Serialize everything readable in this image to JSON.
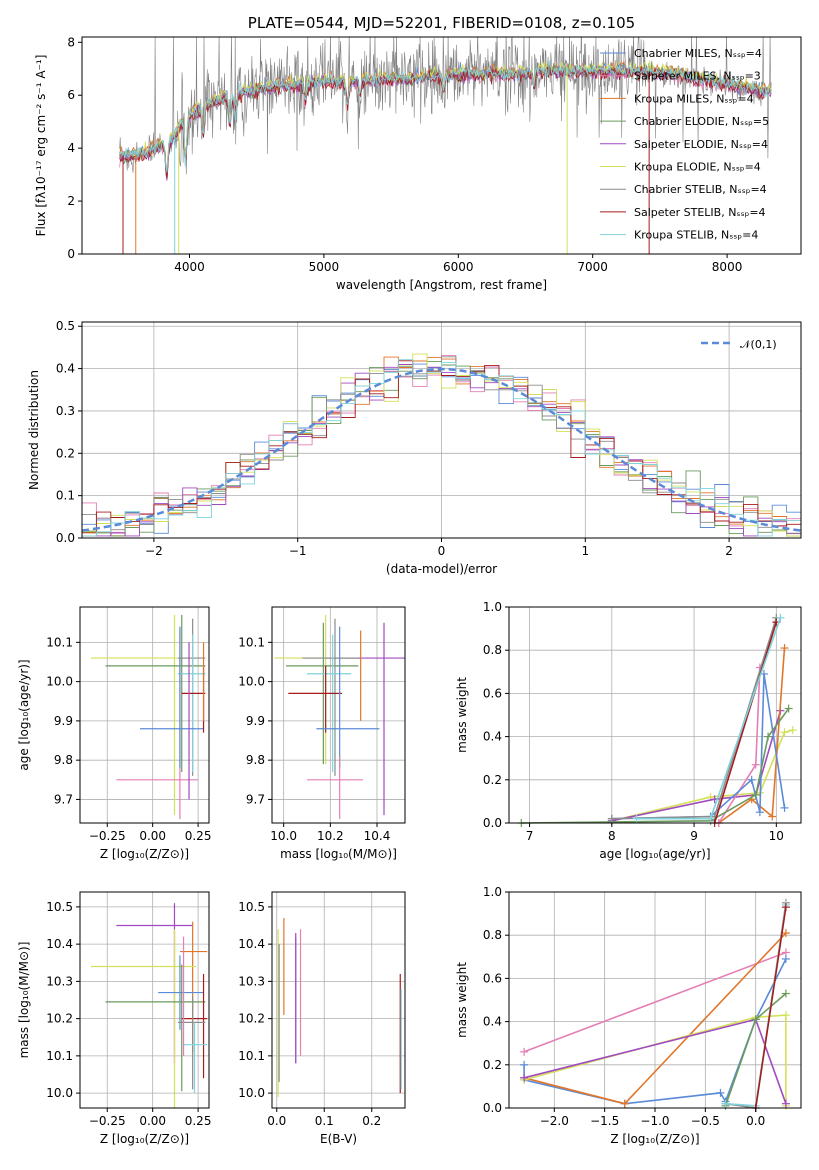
{
  "title": "PLATE=0544, MJD=52201, FIBERID=0108, z=0.105",
  "colors": {
    "chabrier_miles": "#5b8bd8",
    "salpeter_miles": "#e47fb4",
    "kroupa_miles": "#e0762a",
    "chabrier_elodie": "#6a9a5c",
    "salpeter_elodie": "#a14bc0",
    "kroupa_elodie": "#d4e05a",
    "chabrier_stelib": "#8c8c8c",
    "salpeter_stelib": "#a61c1c",
    "kroupa_stelib": "#7fd3dc",
    "data_grey": "#7f7f7f"
  },
  "chart_data": [
    {
      "id": "spectrum",
      "type": "line",
      "title": "PLATE=0544, MJD=52201, FIBERID=0108, z=0.105",
      "xlabel": "wavelength [Angstrom, rest frame]",
      "ylabel": "Flux [fλ10⁻¹⁷ erg cm⁻² s⁻¹ A⁻¹]",
      "xlim": [
        3200,
        8550
      ],
      "ylim": [
        0,
        8.2
      ],
      "xticks": [
        "4000",
        "5000",
        "6000",
        "7000",
        "8000"
      ],
      "yticks": [
        "0",
        "2",
        "4",
        "6",
        "8"
      ],
      "legend_position": "right",
      "legend": [
        "Chabrier MILES, N_SSP=4",
        "Salpeter MILES, N_SSP=3",
        "Kroupa MILES, N_SSP=4",
        "Chabrier ELODIE, N_SSP=5",
        "Salpeter ELODIE, N_SSP=4",
        "Kroupa ELODIE, N_SSP=4",
        "Chabrier STELIB, N_SSP=4",
        "Salpeter STELIB, N_SSP=4",
        "Kroupa STELIB, N_SSP=4"
      ],
      "continuum": {
        "x": [
          3480,
          3550,
          3650,
          3750,
          3850,
          3950,
          4050,
          4200,
          4400,
          4600,
          4800,
          5000,
          5200,
          5400,
          5600,
          5800,
          6000,
          6200,
          6400,
          6600,
          6800,
          7000,
          7200,
          7400,
          7600,
          7800,
          8000,
          8200,
          8330
        ],
        "y": [
          3.7,
          3.7,
          3.8,
          4.0,
          4.2,
          5.0,
          5.4,
          5.8,
          6.1,
          6.3,
          6.4,
          6.5,
          6.5,
          6.6,
          6.6,
          6.7,
          6.8,
          6.8,
          6.8,
          6.9,
          6.9,
          6.9,
          6.9,
          6.9,
          6.8,
          6.6,
          6.4,
          6.2,
          6.1
        ]
      }
    },
    {
      "id": "residuals",
      "type": "histogram",
      "xlabel": "(data-model)/error",
      "ylabel": "Normed distribution",
      "xlim": [
        -2.5,
        2.5
      ],
      "ylim": [
        0,
        0.51
      ],
      "xticks": [
        "−2",
        "−1",
        "0",
        "1",
        "2"
      ],
      "yticks": [
        "0.0",
        "0.1",
        "0.2",
        "0.3",
        "0.4",
        "0.5"
      ],
      "gaussian_legend": "𝒩(0,1)",
      "legend_position": "top-right"
    },
    {
      "id": "age_vs_Z",
      "type": "errorbar",
      "xlabel": "Z [log₁₀(Z/Z⊙)]",
      "ylabel": "age  [log₁₀(age/yr)]",
      "xlim": [
        -0.4,
        0.31
      ],
      "ylim": [
        9.64,
        10.19
      ],
      "xticks": [
        "−0.25",
        "0.00",
        "0.25"
      ],
      "yticks": [
        "9.7",
        "9.8",
        "9.9",
        "10.0",
        "10.1"
      ]
    },
    {
      "id": "age_vs_mass",
      "type": "errorbar",
      "xlabel": "mass [log₁₀(M/M⊙)]",
      "ylabel": "",
      "xlim": [
        9.95,
        10.52
      ],
      "ylim": [
        9.64,
        10.19
      ],
      "xticks": [
        "10.0",
        "10.2",
        "10.4"
      ],
      "yticks": [
        "9.7",
        "9.8",
        "9.9",
        "10.0",
        "10.1"
      ]
    },
    {
      "id": "weight_vs_age",
      "type": "line",
      "xlabel": "age  [log₁₀(age/yr)]",
      "ylabel": "mass weight",
      "xlim": [
        6.75,
        10.3
      ],
      "ylim": [
        0,
        1.0
      ],
      "xticks": [
        "7",
        "8",
        "9",
        "10"
      ],
      "yticks": [
        "0.0",
        "0.2",
        "0.4",
        "0.6",
        "0.8",
        "1.0"
      ]
    },
    {
      "id": "mass_vs_Z",
      "type": "errorbar",
      "xlabel": "Z [log₁₀(Z/Z⊙)]",
      "ylabel": "mass [log₁₀(M/M⊙)]",
      "xlim": [
        -0.4,
        0.31
      ],
      "ylim": [
        9.96,
        10.54
      ],
      "xticks": [
        "−0.25",
        "0.00",
        "0.25"
      ],
      "yticks": [
        "10.0",
        "10.1",
        "10.2",
        "10.3",
        "10.4",
        "10.5"
      ]
    },
    {
      "id": "mass_vs_ebv",
      "type": "errorbar",
      "xlabel": "E(B-V)",
      "ylabel": "",
      "xlim": [
        -0.01,
        0.27
      ],
      "ylim": [
        9.96,
        10.54
      ],
      "xticks": [
        "0.0",
        "0.1",
        "0.2"
      ],
      "yticks": [
        "10.0",
        "10.1",
        "10.2",
        "10.3",
        "10.4",
        "10.5"
      ]
    },
    {
      "id": "weight_vs_Z",
      "type": "line",
      "xlabel": "Z [log₁₀(Z/Z⊙)]",
      "ylabel": "mass weight",
      "xlim": [
        -2.45,
        0.45
      ],
      "ylim": [
        0,
        1.0
      ],
      "xticks": [
        "−2.0",
        "−1.5",
        "−1.0",
        "−0.5",
        "0.0"
      ],
      "yticks": [
        "0.0",
        "0.2",
        "0.4",
        "0.6",
        "0.8",
        "1.0"
      ]
    }
  ]
}
